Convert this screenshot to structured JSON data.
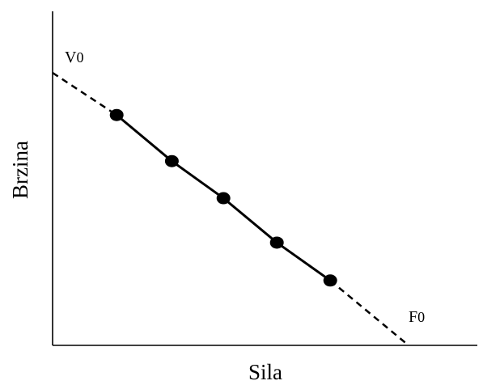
{
  "chart_data": {
    "type": "line",
    "xlabel": "Sila",
    "ylabel": "Brzina",
    "grid": false,
    "legend": "none",
    "xlim": [
      0,
      1
    ],
    "ylim": [
      0,
      1
    ],
    "series": [
      {
        "x": [
          0.18,
          0.335,
          0.48,
          0.63,
          0.78
        ],
        "y": [
          0.845,
          0.676,
          0.54,
          0.377,
          0.238
        ]
      }
    ],
    "extrapolation": {
      "line_style": "dashed",
      "y_intercept": 1.0,
      "x_intercept": 1.0
    },
    "annotations": {
      "v0": {
        "main": "V",
        "sub": "0"
      },
      "f0": {
        "main": "F",
        "sub": "0"
      }
    },
    "colors": {
      "line": "#000000",
      "points": "#000000",
      "axes": "#000000"
    }
  }
}
